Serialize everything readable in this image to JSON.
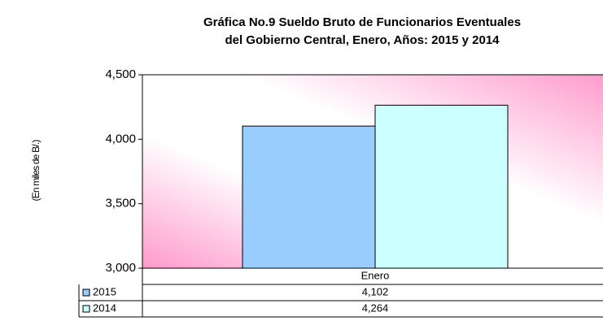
{
  "chart_data": {
    "type": "bar",
    "title": [
      "Gráfica No.9 Sueldo Bruto de Funcionarios Eventuales",
      "del Gobierno Central, Enero, Años: 2015 y 2014"
    ],
    "ylabel": "(En miles de B/.)",
    "categories": [
      "Enero"
    ],
    "series": [
      {
        "name": "2015",
        "color": "#99ccff",
        "values": [
          4102
        ],
        "value_labels": [
          "4,102"
        ]
      },
      {
        "name": "2014",
        "color": "#ccffff",
        "values": [
          4264
        ],
        "value_labels": [
          "4,264"
        ]
      }
    ],
    "ylim": [
      3000,
      4500
    ],
    "yticks": [
      {
        "value": 3000,
        "label": "3,000"
      },
      {
        "value": 3500,
        "label": "3,500"
      },
      {
        "value": 4000,
        "label": "4,000"
      },
      {
        "value": 4500,
        "label": "4,500"
      }
    ],
    "grid": false
  }
}
